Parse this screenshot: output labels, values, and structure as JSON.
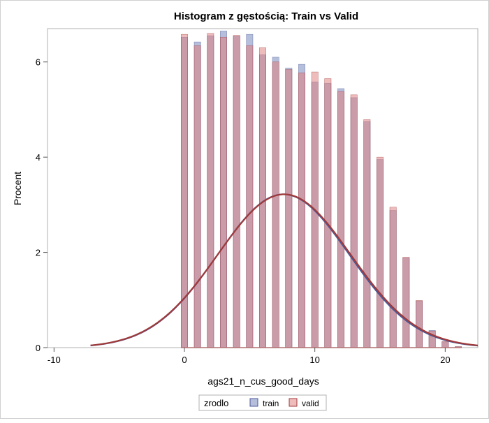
{
  "chart_data": {
    "type": "bar",
    "title": "Histogram z gęstością: Train vs Valid",
    "xlabel": "ags21_n_cus_good_days",
    "ylabel": "Procent",
    "xlim": [
      -10.5,
      22.5
    ],
    "ylim": [
      0,
      6.7
    ],
    "x_ticks": [
      "-10",
      "0",
      "10",
      "20"
    ],
    "y_ticks": [
      "0",
      "2",
      "4",
      "6"
    ],
    "grid": false,
    "legend_position": "bottom-center",
    "legend_title": "zrodlo",
    "bar_width": 0.5,
    "x": [
      0,
      1,
      2,
      3,
      4,
      5,
      6,
      7,
      8,
      9,
      10,
      11,
      12,
      13,
      14,
      15,
      16,
      17,
      18,
      19,
      20,
      21
    ],
    "series": [
      {
        "name": "train",
        "color": "#6b7db8",
        "values": [
          6.52,
          6.42,
          6.55,
          6.65,
          6.54,
          6.58,
          6.15,
          6.1,
          5.87,
          5.95,
          5.58,
          5.55,
          5.44,
          5.25,
          4.75,
          3.95,
          2.88,
          1.88,
          0.98,
          0.36,
          0.12,
          0.02
        ]
      },
      {
        "name": "valid",
        "color": "#e07a7a",
        "values": [
          6.58,
          6.34,
          6.6,
          6.52,
          6.56,
          6.34,
          6.3,
          6.0,
          5.84,
          5.77,
          5.79,
          5.65,
          5.38,
          5.31,
          4.79,
          4.0,
          2.95,
          1.9,
          0.99,
          0.35,
          0.13,
          0.02
        ]
      }
    ],
    "density_curves": [
      {
        "name": "train",
        "color": "#4a5a9a",
        "mean": 7.6,
        "sd": 5.05
      },
      {
        "name": "valid",
        "color": "#a03a3a",
        "mean": 7.65,
        "sd": 5.1
      }
    ],
    "density_range": [
      -7.2,
      22.5
    ],
    "density_scale": 3.22
  }
}
